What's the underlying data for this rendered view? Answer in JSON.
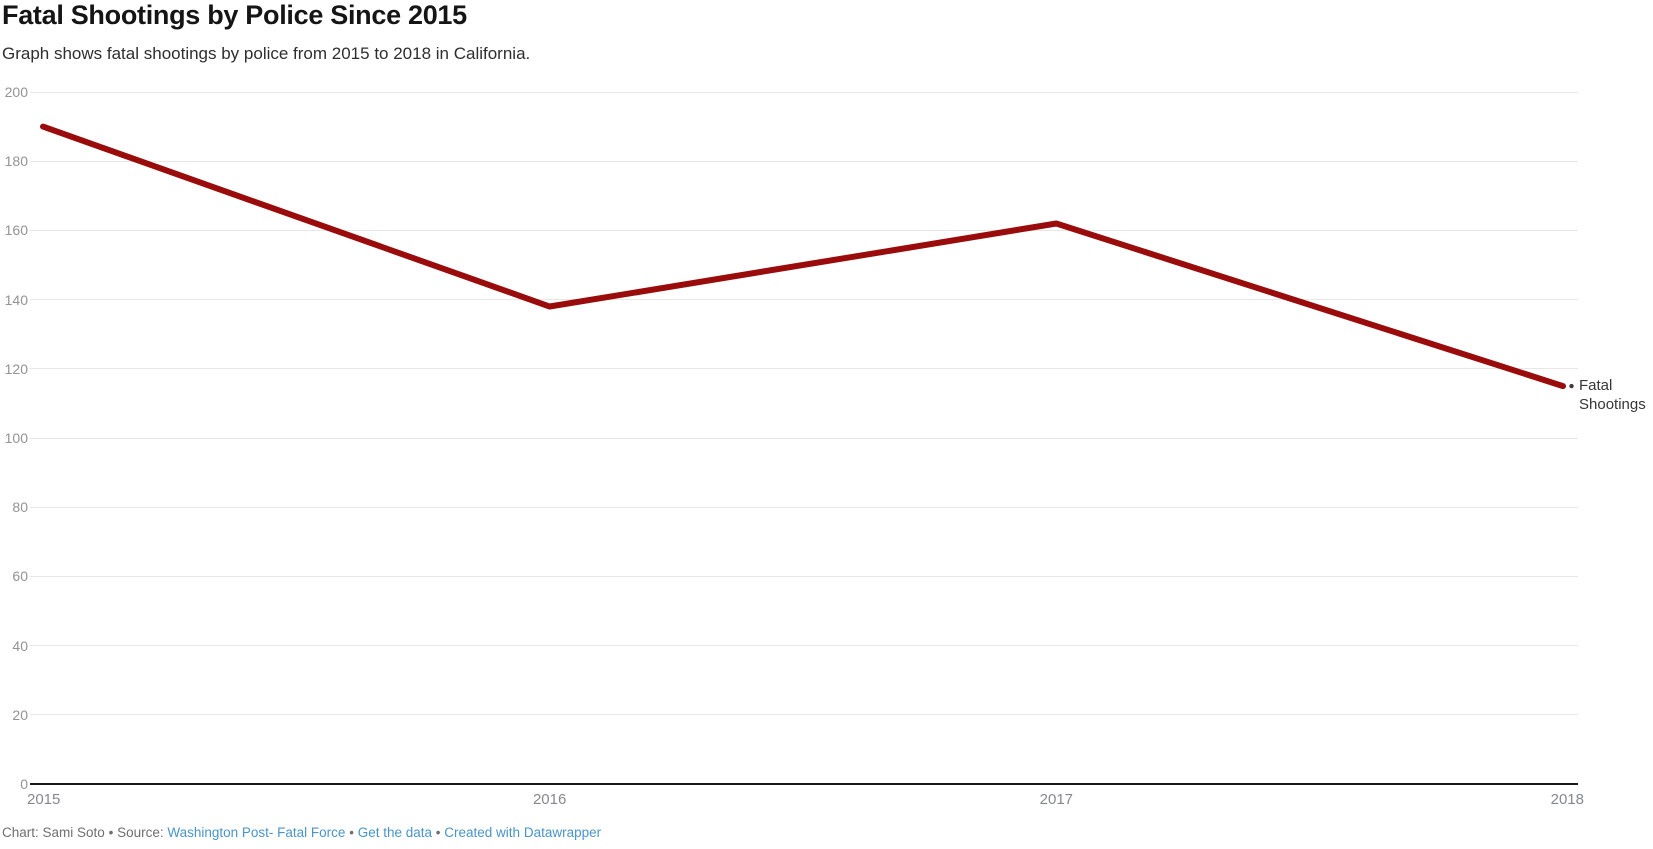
{
  "chart_data": {
    "type": "line",
    "title": "Fatal Shootings by Police Since 2015",
    "subtitle": "Graph shows fatal shootings by police from 2015 to 2018 in California.",
    "x": [
      "2015",
      "2016",
      "2017",
      "2018"
    ],
    "series": [
      {
        "name": "Fatal Shootings",
        "values": [
          190,
          138,
          162,
          115
        ],
        "color": "#9a0c0c"
      }
    ],
    "yticks": [
      0,
      20,
      40,
      60,
      80,
      100,
      120,
      140,
      160,
      180,
      200
    ],
    "ylim": [
      0,
      200
    ],
    "xlabel": "",
    "ylabel": "",
    "grid": "horizontal",
    "legend_position": "direct-label-right",
    "baseline_color": "#191919",
    "gridline_color": "#e7e7e7"
  },
  "footer": {
    "credit": "Chart: Sami Soto",
    "separator": "•",
    "source_prefix": "Source:",
    "links": [
      {
        "label": "Washington Post- Fatal Force"
      },
      {
        "label": "Get the data"
      },
      {
        "label": "Created with Datawrapper"
      }
    ],
    "link_color": "#4a94c8",
    "text_color": "#6f6f6f"
  }
}
